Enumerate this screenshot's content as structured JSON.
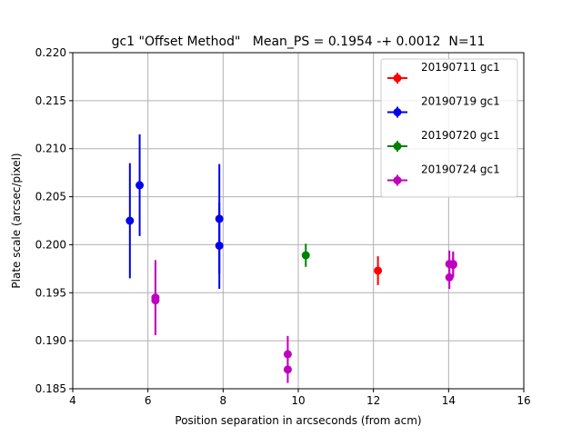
{
  "chart_data": {
    "type": "scatter",
    "title": "gc1 \"Offset Method\"   Mean_PS = 0.1954 -+ 0.0012  N=11",
    "xlabel": "Position separation in arcseconds (from acm)",
    "ylabel": "Plate scale (arcsec/pixel)",
    "xlim": [
      4,
      16
    ],
    "ylim": [
      0.185,
      0.22
    ],
    "xticks": [
      "4",
      "6",
      "8",
      "10",
      "12",
      "14",
      "16"
    ],
    "yticks": [
      "0.185",
      "0.190",
      "0.195",
      "0.200",
      "0.205",
      "0.210",
      "0.215",
      "0.220"
    ],
    "grid": true,
    "legend_position": "upper right",
    "series": [
      {
        "name": "20190711 gc1",
        "color": "#ff0000",
        "points": [
          {
            "x": 12.12,
            "y": 0.1973,
            "yerr": 0.0015
          }
        ]
      },
      {
        "name": "20190719 gc1",
        "color": "#0000ee",
        "points": [
          {
            "x": 5.52,
            "y": 0.2025,
            "yerr": 0.006
          },
          {
            "x": 5.78,
            "y": 0.2062,
            "yerr": 0.0053
          },
          {
            "x": 7.9,
            "y": 0.2027,
            "yerr": 0.0057
          },
          {
            "x": 7.9,
            "y": 0.1999,
            "yerr": 0.0045
          }
        ]
      },
      {
        "name": "20190720 gc1",
        "color": "#008000",
        "points": [
          {
            "x": 10.2,
            "y": 0.1989,
            "yerr": 0.0012
          }
        ]
      },
      {
        "name": "20190724 gc1",
        "color": "#bf00bf",
        "points": [
          {
            "x": 6.2,
            "y": 0.1945,
            "yerr": 0.0039
          },
          {
            "x": 6.2,
            "y": 0.1942,
            "yerr": 0.0036
          },
          {
            "x": 9.72,
            "y": 0.1886,
            "yerr": 0.0019
          },
          {
            "x": 9.72,
            "y": 0.187,
            "yerr": 0.0014
          },
          {
            "x": 14.02,
            "y": 0.198,
            "yerr": 0.0014
          },
          {
            "x": 14.02,
            "y": 0.1966,
            "yerr": 0.0012
          },
          {
            "x": 14.12,
            "y": 0.198,
            "yerr": 0.0013
          },
          {
            "x": 14.12,
            "y": 0.1979,
            "yerr": 0.0013
          }
        ]
      }
    ]
  }
}
